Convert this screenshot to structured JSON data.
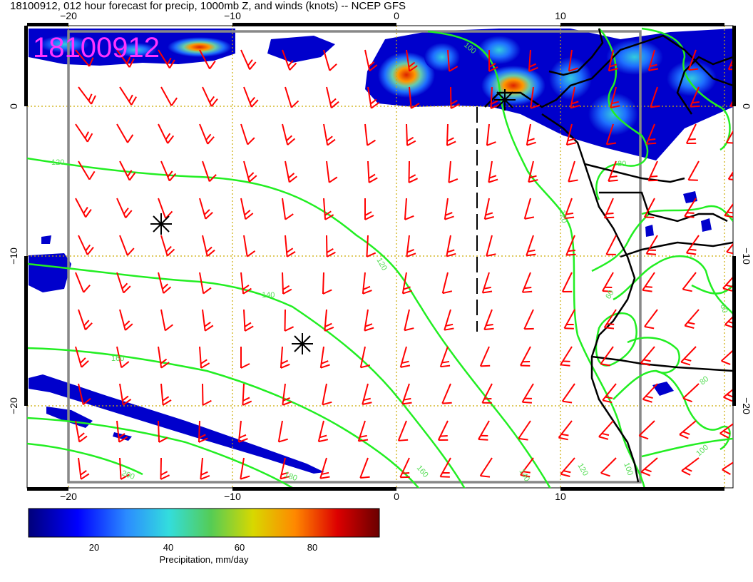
{
  "title": "18100912, 012 hour forecast for precip, 1000mb Z, and winds (knots) -- NCEP GFS",
  "stamp": "18100912",
  "axes": {
    "lon_ticks": [
      "−20",
      "−10",
      "0",
      "10"
    ],
    "lat_ticks": [
      "0",
      "−10",
      "−20"
    ]
  },
  "contour_labels": [
    "120",
    "120",
    "140",
    "160",
    "180",
    "200",
    "160",
    "140",
    "120",
    "100",
    "80",
    "60",
    "60",
    "80",
    "100",
    "100",
    "120"
  ],
  "colorbar": {
    "ticks": [
      "20",
      "40",
      "60",
      "80"
    ],
    "label": "Precipitation, mm/day",
    "stops": [
      "#00007a",
      "#0000ff",
      "#2b8cff",
      "#33dddd",
      "#55cc55",
      "#d8d800",
      "#ff8800",
      "#dd0000",
      "#6a0000"
    ]
  },
  "colors": {
    "contour": "#22ee22",
    "barb": "#ff0000",
    "grid": "#ccaa00",
    "coast": "#000000",
    "frame": "#888888",
    "stamp": "#ff33ff"
  },
  "markers": [
    "storm-marker",
    "storm-marker",
    "storm-marker"
  ]
}
